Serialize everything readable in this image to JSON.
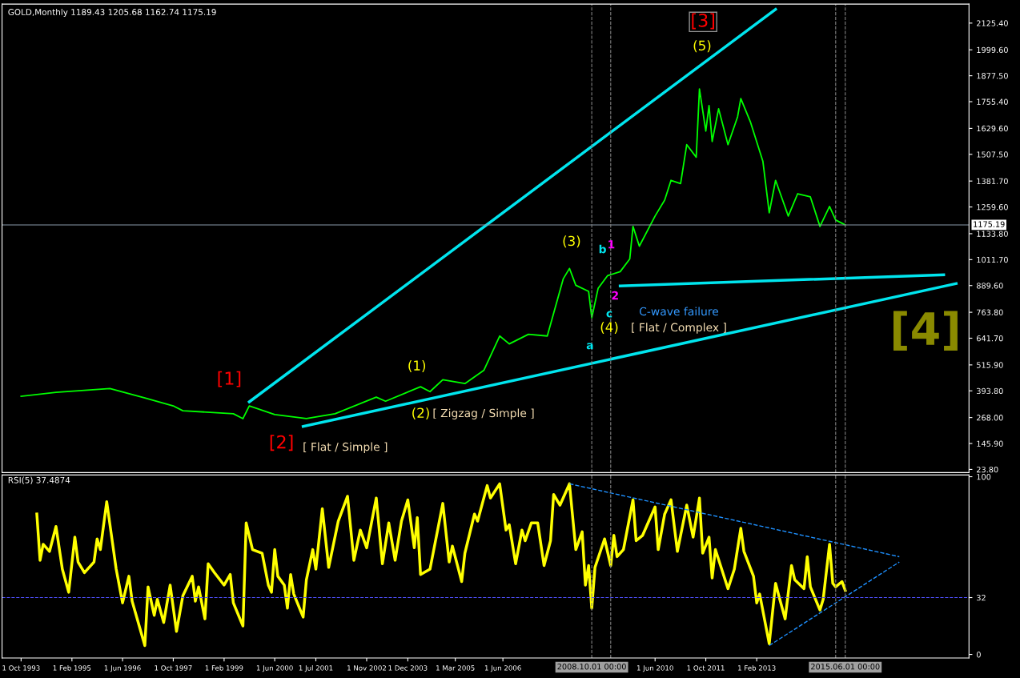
{
  "chart_data": [
    {
      "type": "line",
      "title": "GOLD,Monthly 1189.43 1205.68 1162.74 1175.19",
      "tick_labels": "y",
      "xlim": [
        "1993-04",
        "2018-09"
      ],
      "ylim": [
        9,
        2215
      ],
      "yticks": [
        {
          "value": 23.8,
          "label": "23.80"
        },
        {
          "value": 145.9,
          "label": "145.90"
        },
        {
          "value": 268.0,
          "label": "268.00"
        },
        {
          "value": 393.8,
          "label": "393.80"
        },
        {
          "value": 515.9,
          "label": "515.90"
        },
        {
          "value": 641.7,
          "label": "641.70"
        },
        {
          "value": 763.8,
          "label": "763.80"
        },
        {
          "value": 889.6,
          "label": "889.60"
        },
        {
          "value": 1011.7,
          "label": "1011.70"
        },
        {
          "value": 1133.8,
          "label": "1133.80"
        },
        {
          "value": 1259.6,
          "label": "1259.60"
        },
        {
          "value": 1381.7,
          "label": "1381.70"
        },
        {
          "value": 1507.5,
          "label": "1507.50"
        },
        {
          "value": 1629.6,
          "label": "1629.60"
        },
        {
          "value": 1755.4,
          "label": "1755.40"
        },
        {
          "value": 1877.5,
          "label": "1877.50"
        },
        {
          "value": 1999.6,
          "label": "1999.60"
        },
        {
          "value": 2125.4,
          "label": "2125.40"
        }
      ],
      "series": [
        {
          "color": "#00ff00",
          "x": [
            "1993-10",
            "1994-09",
            "1996-02",
            "1997-01",
            "1997-10",
            "1998-01",
            "1999-05",
            "1999-08",
            "1999-10",
            "2000-06",
            "2001-04",
            "2002-01",
            "2003-02",
            "2003-05",
            "2004-04",
            "2004-07",
            "2004-11",
            "2005-06",
            "2005-12",
            "2006-05",
            "2006-08",
            "2007-02",
            "2007-08",
            "2008-01",
            "2008-03",
            "2008-05",
            "2008-09",
            "2008-10",
            "2008-12",
            "2009-03",
            "2009-07",
            "2009-10",
            "2009-11",
            "2010-01",
            "2010-06",
            "2010-09",
            "2010-11",
            "2011-02",
            "2011-04",
            "2011-07",
            "2011-08",
            "2011-10",
            "2011-11",
            "2011-12",
            "2012-02",
            "2012-05",
            "2012-08",
            "2012-09",
            "2012-12",
            "2013-04",
            "2013-06",
            "2013-08",
            "2013-12",
            "2014-03",
            "2014-07",
            "2014-10",
            "2015-01",
            "2015-03",
            "2015-06"
          ],
          "values": [
            368,
            387,
            405,
            360,
            323,
            300,
            286,
            263,
            323,
            282,
            263,
            286,
            364,
            345,
            413,
            390,
            446,
            428,
            491,
            652,
            615,
            660,
            652,
            921,
            970,
            891,
            862,
            738,
            876,
            936,
            955,
            1015,
            1168,
            1075,
            1217,
            1292,
            1385,
            1370,
            1553,
            1494,
            1815,
            1617,
            1737,
            1568,
            1722,
            1553,
            1684,
            1770,
            1662,
            1475,
            1232,
            1385,
            1217,
            1322,
            1307,
            1168,
            1262,
            1198,
            1175
          ]
        },
        {
          "color": "#00e5ee",
          "x": [
            "1999-10",
            "2013-08"
          ],
          "values": [
            342,
            2190
          ]
        },
        {
          "color": "#00e5ee",
          "x": [
            "2001-03",
            "2018-05"
          ],
          "values": [
            226,
            899
          ]
        },
        {
          "color": "#00e5ee",
          "x": [
            "2009-07",
            "2018-01"
          ],
          "values": [
            888,
            940
          ]
        }
      ],
      "ref_lines": [
        {
          "axis": "y",
          "value": 1175.19,
          "label": "1175.19",
          "color": "#8a9aaa",
          "line_style": "solid"
        },
        {
          "axis": "x",
          "value": "2008-10",
          "color": "#808080",
          "line_style": "dashed"
        },
        {
          "axis": "x",
          "value": "2009-04",
          "color": "#808080",
          "line_style": "dashed"
        },
        {
          "axis": "x",
          "value": "2015-03",
          "color": "#808080",
          "line_style": "dashed"
        },
        {
          "axis": "x",
          "value": "2015-06",
          "color": "#808080",
          "line_style": "dashed"
        }
      ],
      "annotations": [
        "[1]",
        "[2]",
        "[ Flat / Simple ]",
        "(1)",
        "(2)",
        "[ Zigzag / Simple ]",
        "(3)",
        "a",
        "b",
        "1",
        "c",
        "2",
        "(4)",
        "[ Flat / Complex ]",
        "C-wave failure",
        "(5)",
        "[3]",
        "[4]"
      ]
    },
    {
      "type": "line",
      "title": "RSI(5) 37.4874",
      "xlim": [
        "1993-04",
        "2018-09"
      ],
      "ylim": [
        -2,
        101
      ],
      "yticks": [
        0,
        32,
        100
      ],
      "xticks": [
        {
          "value": "1993-10",
          "label": "1 Oct 1993"
        },
        {
          "value": "1995-02",
          "label": "1 Feb 1995"
        },
        {
          "value": "1996-06",
          "label": "1 Jun 1996"
        },
        {
          "value": "1997-10",
          "label": "1 Oct 1997"
        },
        {
          "value": "1999-02",
          "label": "1 Feb 1999"
        },
        {
          "value": "2000-06",
          "label": "1 Jun 2000"
        },
        {
          "value": "2001-07",
          "label": "1 Jul 2001"
        },
        {
          "value": "2002-11",
          "label": "1 Nov 2002"
        },
        {
          "value": "2003-12",
          "label": "1 Dec 2003"
        },
        {
          "value": "2005-03",
          "label": "1 Mar 2005"
        },
        {
          "value": "2006-06",
          "label": "1 Jun 2006"
        },
        {
          "value": "2010-06",
          "label": "1 Jun 2010"
        },
        {
          "value": "2011-10",
          "label": "1 Oct 2011"
        },
        {
          "value": "2013-02",
          "label": "1 Feb 2013"
        }
      ],
      "series": [
        {
          "color": "#ffff00",
          "x": [
            "1994-03",
            "1994-04",
            "1994-05",
            "1994-07",
            "1994-09",
            "1994-11",
            "1995-01",
            "1995-03",
            "1995-04",
            "1995-06",
            "1995-09",
            "1995-10",
            "1995-11",
            "1996-01",
            "1996-04",
            "1996-06",
            "1996-08",
            "1996-09",
            "1997-01",
            "1997-02",
            "1997-04",
            "1997-05",
            "1997-07",
            "1997-09",
            "1997-11",
            "1998-01",
            "1998-04",
            "1998-05",
            "1998-06",
            "1998-08",
            "1998-09",
            "1998-11",
            "1999-02",
            "1999-04",
            "1999-05",
            "1999-08",
            "1999-09",
            "1999-11",
            "2000-02",
            "2000-04",
            "2000-05",
            "2000-06",
            "2000-07",
            "2000-09",
            "2000-10",
            "2000-11",
            "2000-12",
            "2001-03",
            "2001-04",
            "2001-06",
            "2001-07",
            "2001-09",
            "2001-11",
            "2002-02",
            "2002-05",
            "2002-07",
            "2002-09",
            "2002-11",
            "2003-02",
            "2003-04",
            "2003-06",
            "2003-08",
            "2003-10",
            "2003-12",
            "2004-02",
            "2004-03",
            "2004-04",
            "2004-07",
            "2004-11",
            "2005-01",
            "2005-02",
            "2005-05",
            "2005-06",
            "2005-09",
            "2005-10",
            "2006-01",
            "2006-02",
            "2006-05",
            "2006-07",
            "2006-08",
            "2006-10",
            "2006-12",
            "2007-01",
            "2007-03",
            "2007-05",
            "2007-07",
            "2007-09",
            "2007-10",
            "2007-12",
            "2008-03",
            "2008-05",
            "2008-07",
            "2008-08",
            "2008-09",
            "2008-10",
            "2008-11",
            "2009-02",
            "2009-04",
            "2009-05",
            "2009-06",
            "2009-08",
            "2009-11",
            "2009-12",
            "2010-02",
            "2010-06",
            "2010-07",
            "2010-09",
            "2010-11",
            "2011-01",
            "2011-04",
            "2011-06",
            "2011-08",
            "2011-09",
            "2011-11",
            "2011-12",
            "2012-01",
            "2012-05",
            "2012-07",
            "2012-09",
            "2012-10",
            "2013-01",
            "2013-02",
            "2013-03",
            "2013-06",
            "2013-08",
            "2013-09",
            "2013-11",
            "2014-01",
            "2014-02",
            "2014-05",
            "2014-06",
            "2014-07",
            "2014-10",
            "2014-11",
            "2015-01",
            "2015-02",
            "2015-03",
            "2015-05",
            "2015-06"
          ],
          "values": [
            79,
            53,
            62,
            58,
            72,
            48,
            35,
            66,
            52,
            46,
            52,
            65,
            59,
            86,
            48,
            29,
            44,
            30,
            5,
            38,
            22,
            31,
            18,
            39,
            13,
            33,
            44,
            30,
            38,
            20,
            51,
            46,
            39,
            45,
            29,
            16,
            74,
            59,
            57,
            39,
            35,
            59,
            44,
            39,
            26,
            45,
            34,
            21,
            42,
            59,
            48,
            82,
            49,
            75,
            89,
            53,
            70,
            60,
            88,
            51,
            74,
            53,
            75,
            87,
            60,
            77,
            45,
            48,
            85,
            52,
            61,
            41,
            57,
            79,
            75,
            95,
            88,
            96,
            70,
            73,
            51,
            70,
            64,
            74,
            74,
            50,
            64,
            90,
            84,
            96,
            59,
            69,
            39,
            50,
            26,
            49,
            65,
            50,
            67,
            55,
            59,
            87,
            64,
            67,
            83,
            59,
            79,
            87,
            58,
            84,
            66,
            88,
            57,
            66,
            43,
            59,
            37,
            48,
            71,
            58,
            44,
            29,
            34,
            6,
            40,
            33,
            20,
            50,
            42,
            37,
            55,
            38,
            25,
            31,
            62,
            40,
            38,
            41,
            36
          ]
        },
        {
          "color": "#1e90ff",
          "line_style": "dashed",
          "x": [
            "2008-03",
            "2016-11"
          ],
          "values": [
            96,
            55
          ]
        },
        {
          "color": "#1e90ff",
          "line_style": "dashed",
          "x": [
            "2013-06",
            "2016-11"
          ],
          "values": [
            5,
            52
          ]
        }
      ],
      "ref_lines": [
        {
          "axis": "y",
          "value": 32,
          "color": "#5050ff",
          "line_style": "dashed"
        },
        {
          "axis": "x",
          "value": "2008-10",
          "label": "2008.10.01 00:00",
          "color": "#808080",
          "line_style": "dashed"
        },
        {
          "axis": "x",
          "value": "2009-04",
          "color": "#808080",
          "line_style": "dashed"
        },
        {
          "axis": "x",
          "value": "2015-03",
          "color": "#808080",
          "line_style": "dashed"
        },
        {
          "axis": "x",
          "value": "2015-06",
          "label": "2015.06.01 00:00",
          "color": "#808080",
          "line_style": "dashed"
        }
      ]
    }
  ]
}
